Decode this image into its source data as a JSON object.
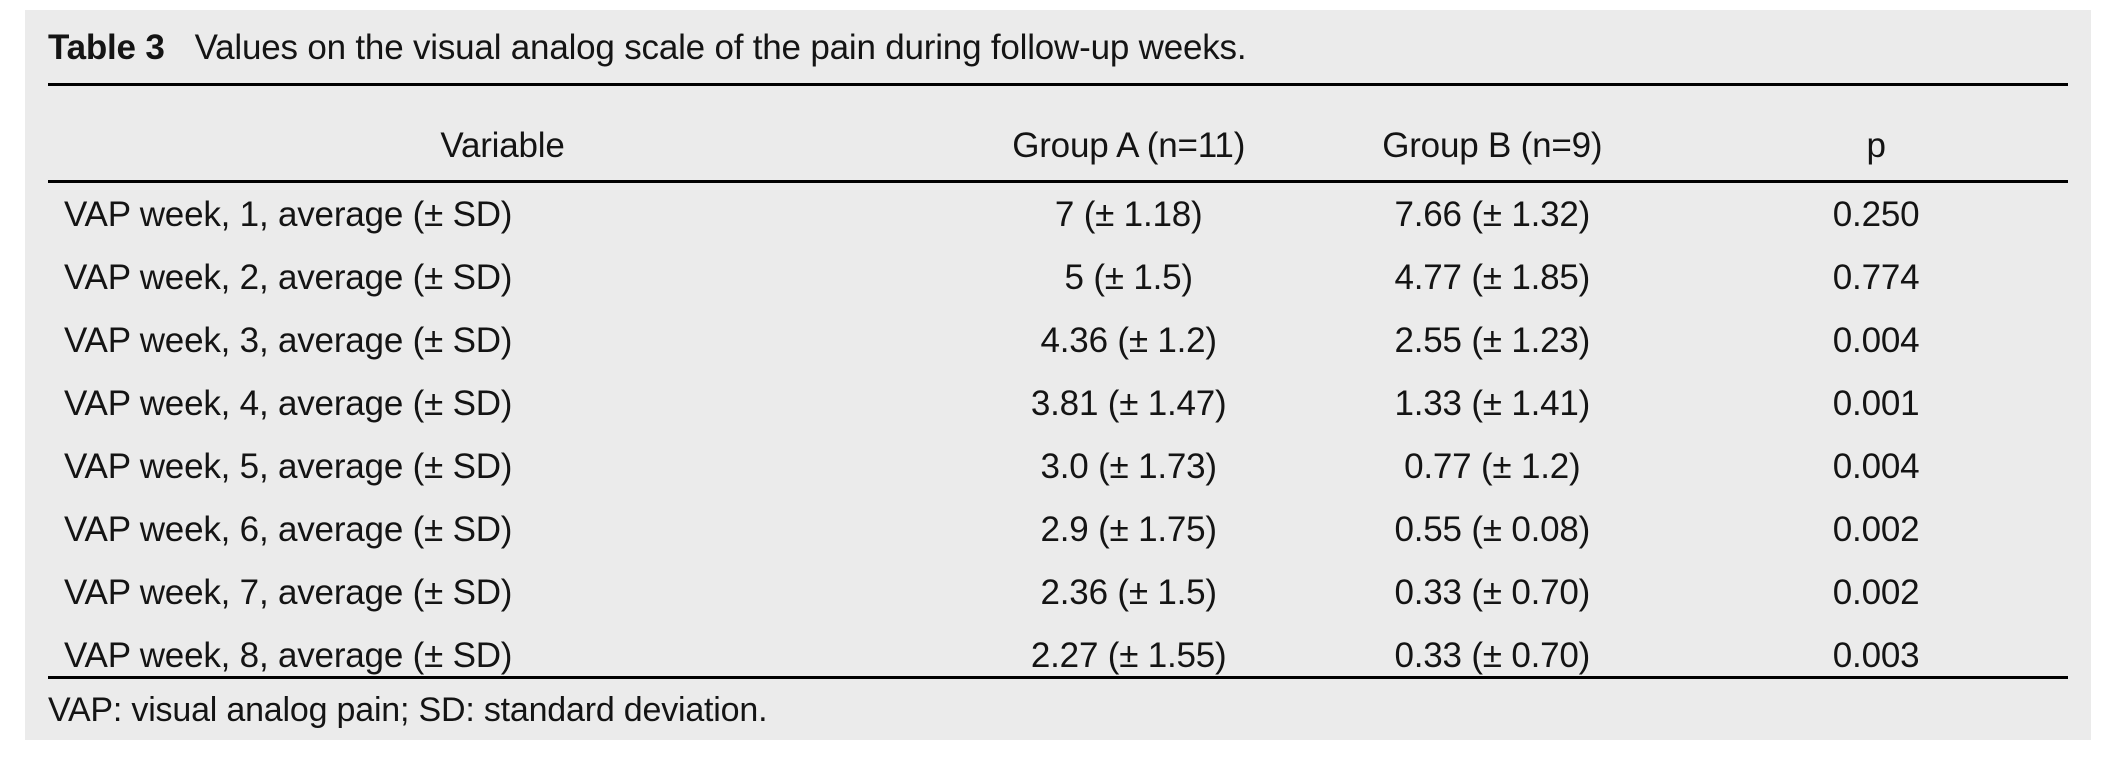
{
  "table": {
    "caption_label": "Table 3",
    "caption_text": "Values on the visual analog scale of the pain during follow-up weeks.",
    "columns": [
      "Variable",
      "Group A (n=11)",
      "Group B (n=9)",
      "p"
    ],
    "rows": [
      {
        "variable": "VAP week, 1, average (± SD)",
        "group_a": "7 (± 1.18)",
        "group_b": "7.66 (± 1.32)",
        "p": "0.250"
      },
      {
        "variable": "VAP week, 2, average (± SD)",
        "group_a": "5 (± 1.5)",
        "group_b": "4.77 (± 1.85)",
        "p": "0.774"
      },
      {
        "variable": "VAP week, 3, average (± SD)",
        "group_a": "4.36 (± 1.2)",
        "group_b": "2.55 (± 1.23)",
        "p": "0.004"
      },
      {
        "variable": "VAP week, 4, average (± SD)",
        "group_a": "3.81 (± 1.47)",
        "group_b": "1.33 (± 1.41)",
        "p": "0.001"
      },
      {
        "variable": "VAP week, 5, average (± SD)",
        "group_a": "3.0 (± 1.73)",
        "group_b": "0.77 (± 1.2)",
        "p": "0.004"
      },
      {
        "variable": "VAP week, 6, average (± SD)",
        "group_a": "2.9 (± 1.75)",
        "group_b": "0.55 (± 0.08)",
        "p": "0.002"
      },
      {
        "variable": "VAP week, 7, average (± SD)",
        "group_a": "2.36 (± 1.5)",
        "group_b": "0.33 (± 0.70)",
        "p": "0.002"
      },
      {
        "variable": "VAP week, 8, average (± SD)",
        "group_a": "2.27 (± 1.55)",
        "group_b": "0.33 (± 0.70)",
        "p": "0.003"
      }
    ],
    "footnote": "VAP: visual analog pain; SD: standard deviation.",
    "colors": {
      "page_bg": "#ffffff",
      "panel_bg": "#ebebeb",
      "text": "#141414",
      "rule": "#000000"
    }
  }
}
